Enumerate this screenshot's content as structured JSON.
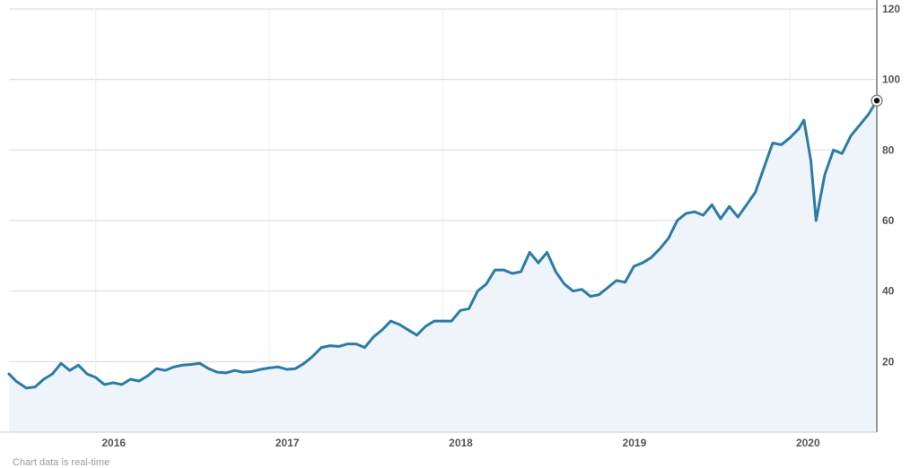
{
  "chart_data": {
    "type": "area",
    "footnote": "Chart data is real-time",
    "ylim": [
      0,
      120
    ],
    "xlim": [
      2015.5,
      2020.5
    ],
    "y_ticks": [
      20,
      40,
      60,
      80,
      100,
      120
    ],
    "y_tick_labels": [
      "20",
      "40",
      "60",
      "80",
      "100",
      "120"
    ],
    "x_ticks": [
      2016,
      2017,
      2018,
      2019,
      2020
    ],
    "x_tick_labels": [
      "2016",
      "2017",
      "2018",
      "2019",
      "2020"
    ],
    "grid": true,
    "legend": "none",
    "colors": {
      "line": "#2b7ca6",
      "fill": "#eef4fa",
      "grid": "#d9d9d9",
      "axis": "#333333",
      "marker_fill": "#111111",
      "marker_ring": "#888888"
    },
    "series": [
      {
        "x": [
          2015.5,
          2015.54,
          2015.6,
          2015.65,
          2015.7,
          2015.75,
          2015.8,
          2015.85,
          2015.9,
          2015.95,
          2016.0,
          2016.05,
          2016.1,
          2016.15,
          2016.2,
          2016.25,
          2016.3,
          2016.35,
          2016.4,
          2016.45,
          2016.5,
          2016.55,
          2016.6,
          2016.65,
          2016.7,
          2016.75,
          2016.8,
          2016.85,
          2016.9,
          2016.95,
          2017.0,
          2017.05,
          2017.1,
          2017.15,
          2017.2,
          2017.25,
          2017.3,
          2017.35,
          2017.4,
          2017.45,
          2017.5,
          2017.55,
          2017.6,
          2017.65,
          2017.7,
          2017.75,
          2017.8,
          2017.85,
          2017.9,
          2017.95,
          2018.0,
          2018.05,
          2018.1,
          2018.15,
          2018.2,
          2018.25,
          2018.3,
          2018.35,
          2018.4,
          2018.45,
          2018.5,
          2018.55,
          2018.6,
          2018.65,
          2018.7,
          2018.75,
          2018.8,
          2018.85,
          2018.9,
          2018.95,
          2019.0,
          2019.05,
          2019.1,
          2019.15,
          2019.2,
          2019.25,
          2019.3,
          2019.35,
          2019.4,
          2019.45,
          2019.5,
          2019.55,
          2019.6,
          2019.65,
          2019.7,
          2019.75,
          2019.8,
          2019.85,
          2019.9,
          2019.95,
          2020.0,
          2020.05,
          2020.08,
          2020.12,
          2020.15,
          2020.2,
          2020.25,
          2020.3,
          2020.35,
          2020.4,
          2020.45,
          2020.5
        ],
        "values": [
          16.5,
          14.5,
          12.5,
          12.8,
          15,
          16.5,
          19.5,
          17.5,
          19,
          16.5,
          15.5,
          13.5,
          14,
          13.5,
          15,
          14.5,
          16,
          18,
          17.5,
          18.5,
          19,
          19.2,
          19.5,
          18,
          17,
          16.8,
          17.5,
          17,
          17.2,
          17.8,
          18.2,
          18.5,
          17.8,
          18,
          19.5,
          21.5,
          24,
          24.5,
          24.3,
          25,
          25,
          24,
          27,
          29,
          31.5,
          30.5,
          29,
          27.5,
          30,
          31.5,
          31.5,
          31.5,
          34.5,
          35,
          40,
          42,
          46,
          46,
          45,
          45.5,
          51,
          48,
          51,
          45.5,
          42,
          40,
          40.5,
          38.5,
          39,
          41,
          43,
          42.5,
          47,
          48,
          49.5,
          52,
          55,
          60,
          62,
          62.5,
          61.5,
          64.5,
          60.5,
          64,
          61,
          64.5,
          68,
          75,
          82,
          81.5,
          83.5,
          86,
          88.5,
          77,
          60,
          73,
          80,
          79,
          84,
          87,
          90,
          94
        ]
      }
    ]
  }
}
